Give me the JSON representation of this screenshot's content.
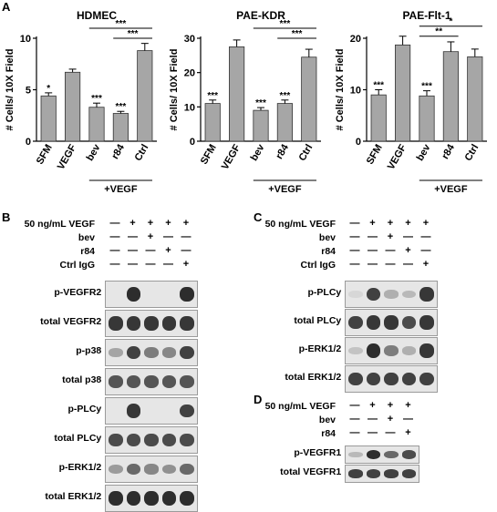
{
  "panels": {
    "A": "A",
    "B": "B",
    "C": "C",
    "D": "D"
  },
  "chart_data": [
    {
      "type": "bar",
      "title": "HDMEC",
      "ylabel": "# Cells/ 10X Field",
      "categories": [
        "SFM",
        "VEGF",
        "bev",
        "r84",
        "Ctrl"
      ],
      "values": [
        4.4,
        6.7,
        3.3,
        2.7,
        8.8
      ],
      "errors": [
        0.3,
        0.3,
        0.4,
        0.2,
        0.7
      ],
      "ylim": [
        0,
        10
      ],
      "yticks": [
        0,
        5,
        10
      ],
      "bar_stars": [
        "*",
        "",
        "***",
        "***",
        ""
      ],
      "group_label": "+VEGF",
      "brackets": [
        {
          "from": 2,
          "to": 4,
          "label": "***",
          "level": 1
        },
        {
          "from": 3,
          "to": 4,
          "label": "***",
          "level": 0
        }
      ],
      "bar_color": "#a6a6a6"
    },
    {
      "type": "bar",
      "title": "PAE-KDR",
      "ylabel": "# Cells/ 10X Field",
      "categories": [
        "SFM",
        "VEGF",
        "bev",
        "r84",
        "Ctrl"
      ],
      "values": [
        11,
        27.5,
        9,
        11,
        24.5
      ],
      "errors": [
        1,
        2,
        0.8,
        1,
        2.3
      ],
      "ylim": [
        0,
        30
      ],
      "yticks": [
        0,
        10,
        20,
        30
      ],
      "bar_stars": [
        "***",
        "",
        "***",
        "***",
        ""
      ],
      "group_label": "+VEGF",
      "brackets": [
        {
          "from": 2,
          "to": 4,
          "label": "***",
          "level": 1
        },
        {
          "from": 3,
          "to": 4,
          "label": "***",
          "level": 0
        }
      ],
      "bar_color": "#a6a6a6"
    },
    {
      "type": "bar",
      "title": "PAE-Flt-1",
      "ylabel": "# Cells/ 10X Field",
      "categories": [
        "SFM",
        "VEGF",
        "bev",
        "r84",
        "Ctrl"
      ],
      "values": [
        9,
        18.7,
        8.8,
        17.4,
        16.4
      ],
      "errors": [
        1,
        1.7,
        1,
        1.9,
        1.5
      ],
      "ylim": [
        0,
        20
      ],
      "yticks": [
        0,
        10,
        20
      ],
      "bar_stars": [
        "***",
        "",
        "***",
        "",
        ""
      ],
      "group_label": "+VEGF",
      "brackets": [
        {
          "from": 2,
          "to": 4,
          "label": "*",
          "level": 1
        },
        {
          "from": 2,
          "to": 3,
          "label": "**",
          "level": 0
        }
      ],
      "bar_color": "#a6a6a6"
    }
  ],
  "blots": {
    "B": {
      "conditions": [
        {
          "label": "50 ng/mL VEGF",
          "symbols": [
            "—",
            "+",
            "+",
            "+",
            "+"
          ]
        },
        {
          "label": "bev",
          "symbols": [
            "—",
            "—",
            "+",
            "—",
            "—"
          ]
        },
        {
          "label": "r84",
          "symbols": [
            "—",
            "—",
            "—",
            "+",
            "—"
          ]
        },
        {
          "label": "Ctrl IgG",
          "symbols": [
            "—",
            "—",
            "—",
            "—",
            "+"
          ]
        }
      ],
      "rows": [
        {
          "label": "p-VEGFR2",
          "intensity": [
            0.0,
            0.9,
            0.0,
            0.0,
            0.9
          ]
        },
        {
          "label": "total VEGFR2",
          "intensity": [
            0.85,
            0.85,
            0.85,
            0.85,
            0.85
          ]
        },
        {
          "label": "p-p38",
          "intensity": [
            0.3,
            0.8,
            0.5,
            0.45,
            0.8
          ]
        },
        {
          "label": "total p38",
          "intensity": [
            0.7,
            0.7,
            0.7,
            0.7,
            0.7
          ]
        },
        {
          "label": "p-PLCy",
          "intensity": [
            0.0,
            0.85,
            0.0,
            0.0,
            0.8
          ]
        },
        {
          "label": "total PLCy",
          "intensity": [
            0.75,
            0.75,
            0.75,
            0.75,
            0.75
          ]
        },
        {
          "label": "p-ERK1/2",
          "intensity": [
            0.35,
            0.6,
            0.45,
            0.4,
            0.6
          ]
        },
        {
          "label": "total ERK1/2",
          "intensity": [
            0.9,
            0.9,
            0.9,
            0.9,
            0.9
          ]
        }
      ]
    },
    "C": {
      "conditions": [
        {
          "label": "50 ng/mL VEGF",
          "symbols": [
            "—",
            "+",
            "+",
            "+",
            "+"
          ]
        },
        {
          "label": "bev",
          "symbols": [
            "—",
            "—",
            "+",
            "—",
            "—"
          ]
        },
        {
          "label": "r84",
          "symbols": [
            "—",
            "—",
            "—",
            "+",
            "—"
          ]
        },
        {
          "label": "Ctrl IgG",
          "symbols": [
            "—",
            "—",
            "—",
            "—",
            "+"
          ]
        }
      ],
      "rows": [
        {
          "label": "p-PLCy",
          "intensity": [
            0.05,
            0.8,
            0.25,
            0.2,
            0.85
          ]
        },
        {
          "label": "total PLCy",
          "intensity": [
            0.8,
            0.85,
            0.85,
            0.75,
            0.85
          ]
        },
        {
          "label": "p-ERK1/2",
          "intensity": [
            0.15,
            0.9,
            0.5,
            0.25,
            0.85
          ]
        },
        {
          "label": "total ERK1/2",
          "intensity": [
            0.8,
            0.8,
            0.8,
            0.8,
            0.8
          ]
        }
      ]
    },
    "D": {
      "conditions": [
        {
          "label": "50 ng/mL VEGF",
          "symbols": [
            "—",
            "+",
            "+",
            "+"
          ]
        },
        {
          "label": "bev",
          "symbols": [
            "—",
            "—",
            "+",
            "—"
          ]
        },
        {
          "label": "r84",
          "symbols": [
            "—",
            "—",
            "—",
            "+"
          ]
        }
      ],
      "rows": [
        {
          "label": "p-VEGFR1",
          "intensity": [
            0.2,
            0.9,
            0.6,
            0.75
          ]
        },
        {
          "label": "total VEGFR1",
          "intensity": [
            0.8,
            0.8,
            0.8,
            0.8
          ]
        }
      ]
    }
  }
}
